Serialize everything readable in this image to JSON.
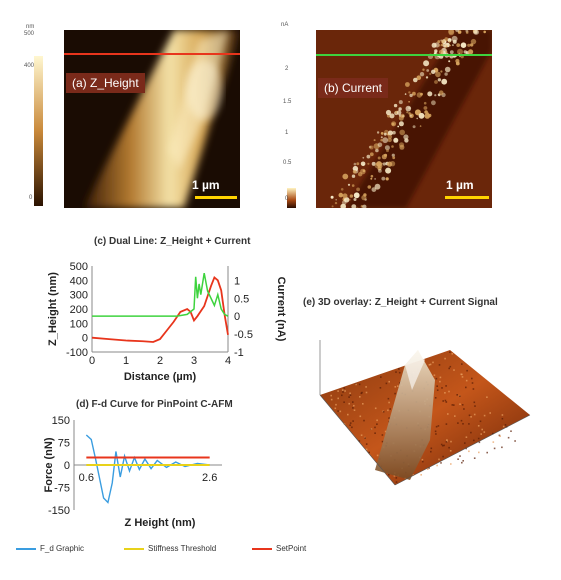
{
  "panel_a": {
    "label": "(a) Z_Height",
    "scale_label": "1  µm",
    "colorbar_unit": "nm",
    "colorbar_ticks": [
      "500",
      "400",
      "0"
    ]
  },
  "panel_b": {
    "label": "(b) Current",
    "scale_label": "1  µm",
    "colorbar_unit": "nA",
    "colorbar_ticks": [
      "2",
      "1.5",
      "1",
      "0.5",
      "0"
    ]
  },
  "panel_e": {
    "title": "(e) 3D overlay: Z_Height + Current Signal"
  },
  "colors": {
    "z_height": "#e8351c",
    "current": "#3ed33e",
    "fd": "#3a9de0",
    "threshold": "#e8d21a",
    "setpoint": "#e8351c"
  },
  "chart_data": [
    {
      "type": "line",
      "title": "(c) Dual Line: Z_Height + Current",
      "xlabel": "Distance (µm)",
      "ylabel": "Z_Height (nm)",
      "y2label": "Current (nA)",
      "xlim": [
        0,
        4
      ],
      "ylim": [
        -100,
        500
      ],
      "y2lim": [
        -1,
        1.4
      ],
      "xticks": [
        "0",
        "1",
        "2",
        "3",
        "4"
      ],
      "yticks": [
        "-100",
        "0",
        "100",
        "200",
        "300",
        "400",
        "500"
      ],
      "y2ticks": [
        "-1",
        "-0.5",
        "0",
        "0.5",
        "1"
      ],
      "series": [
        {
          "axis": "left",
          "x": [
            0,
            0.5,
            1.0,
            1.5,
            1.8,
            2.0,
            2.2,
            2.4,
            2.6,
            2.8,
            2.9,
            3.0,
            3.1,
            3.3,
            3.5,
            3.6,
            3.7,
            3.8,
            3.9,
            4.0
          ],
          "y": [
            0,
            -10,
            -20,
            -25,
            -30,
            -10,
            50,
            110,
            180,
            200,
            180,
            120,
            150,
            220,
            360,
            420,
            400,
            330,
            160,
            20
          ]
        },
        {
          "axis": "right",
          "x": [
            0,
            0.5,
            1.0,
            1.5,
            2.0,
            2.5,
            2.8,
            3.0,
            3.05,
            3.1,
            3.15,
            3.2,
            3.3,
            3.4,
            3.5,
            3.6,
            3.7,
            3.8,
            3.9,
            4.0
          ],
          "y": [
            0,
            0,
            0,
            0,
            0,
            0,
            0.05,
            0.2,
            1.1,
            0.5,
            0.9,
            0.6,
            1.2,
            0.7,
            0.5,
            0.3,
            0.6,
            0.2,
            0.05,
            0
          ]
        }
      ]
    },
    {
      "type": "line",
      "title": "(d) F-d Curve for PinPoint C-AFM",
      "xlabel": "Z Height (nm)",
      "ylabel": "Force (nN)",
      "xlim": [
        0.4,
        2.8
      ],
      "ylim": [
        -150,
        150
      ],
      "xticks": [
        "0.6",
        "2.6"
      ],
      "yticks": [
        "-150",
        "-75",
        "0",
        "75",
        "150"
      ],
      "legend": [
        "F_d Graphic",
        "Stiffness Threshold",
        "SetPoint"
      ],
      "series": [
        {
          "name": "F_d Graphic",
          "x": [
            0.6,
            0.68,
            0.75,
            0.82,
            0.88,
            0.95,
            1.02,
            1.08,
            1.15,
            1.22,
            1.3,
            1.38,
            1.46,
            1.55,
            1.65,
            1.75,
            1.9,
            2.05,
            2.2,
            2.4,
            2.6
          ],
          "y": [
            100,
            85,
            20,
            -50,
            -110,
            -125,
            -60,
            45,
            -40,
            30,
            -20,
            25,
            -15,
            20,
            -12,
            15,
            -8,
            10,
            -5,
            5,
            0
          ]
        },
        {
          "name": "Stiffness Threshold",
          "x": [
            0.6,
            2.6
          ],
          "y": [
            0,
            0
          ]
        },
        {
          "name": "SetPoint",
          "x": [
            0.6,
            2.6
          ],
          "y": [
            25,
            25
          ]
        }
      ]
    }
  ]
}
